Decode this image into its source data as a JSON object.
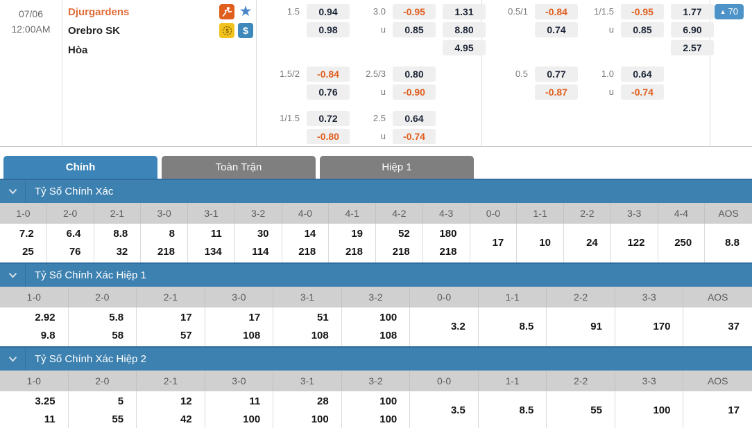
{
  "colors": {
    "accent_blue": "#3d81b0",
    "active_tab_blue": "#3d85b8",
    "inactive_tab_gray": "#7f7f7f",
    "negative_odds_orange": "#e05e1e",
    "home_team_orange": "#e06d38",
    "badge_blue": "#4e93c8",
    "odds_box_gray": "#efefef",
    "table_header_gray": "#d0d0d0"
  },
  "match": {
    "date": "07/06",
    "time": "12:00AM",
    "home": "Djurgardens",
    "away": "Orebro SK",
    "draw_label": "Hòa",
    "badge_arrow": "▲",
    "badge_count": "70"
  },
  "icons": {
    "player_icon": "running-player on orange square",
    "star_icon": "★",
    "coin_icon": "coin with $ on yellow square",
    "dollar_icon": "$",
    "chevron_icon": "chevron-down"
  },
  "odds_panel": {
    "groups": [
      {
        "sets": [
          {
            "handicap": {
              "label": "1.5",
              "values": [
                "0.94",
                "0.98"
              ]
            },
            "total": {
              "labels": [
                "3.0",
                "u"
              ],
              "values": [
                "-0.95",
                "0.85"
              ]
            },
            "x12": [
              "1.31",
              "8.80",
              "4.95"
            ]
          },
          {
            "handicap": {
              "label": "1.5/2",
              "values": [
                "-0.84",
                "0.76"
              ]
            },
            "total": {
              "labels": [
                "2.5/3",
                "u"
              ],
              "values": [
                "0.80",
                "-0.90"
              ]
            }
          },
          {
            "handicap": {
              "label": "1/1.5",
              "values": [
                "0.72",
                "-0.80"
              ]
            },
            "total": {
              "labels": [
                "2.5",
                "u"
              ],
              "values": [
                "0.64",
                "-0.74"
              ]
            }
          }
        ]
      },
      {
        "sets": [
          {
            "handicap": {
              "label": "0.5/1",
              "values": [
                "-0.84",
                "0.74"
              ]
            },
            "total": {
              "labels": [
                "1/1.5",
                "u"
              ],
              "values": [
                "-0.95",
                "0.85"
              ]
            },
            "x12": [
              "1.77",
              "6.90",
              "2.57"
            ]
          },
          {
            "handicap": {
              "label": "0.5",
              "values": [
                "0.77",
                "-0.87"
              ]
            },
            "total": {
              "labels": [
                "1.0",
                "u"
              ],
              "values": [
                "0.64",
                "-0.74"
              ]
            }
          }
        ]
      }
    ]
  },
  "tabs": [
    {
      "label": "Chính",
      "active": true
    },
    {
      "label": "Toàn Trận",
      "active": false
    },
    {
      "label": "Hiệp 1",
      "active": false
    }
  ],
  "sections": [
    {
      "title": "Tỷ Số Chính Xác",
      "columns": [
        {
          "score": "1-0",
          "odds": [
            "7.2",
            "25"
          ]
        },
        {
          "score": "2-0",
          "odds": [
            "6.4",
            "76"
          ]
        },
        {
          "score": "2-1",
          "odds": [
            "8.8",
            "32"
          ]
        },
        {
          "score": "3-0",
          "odds": [
            "8",
            "218"
          ]
        },
        {
          "score": "3-1",
          "odds": [
            "11",
            "134"
          ]
        },
        {
          "score": "3-2",
          "odds": [
            "30",
            "114"
          ]
        },
        {
          "score": "4-0",
          "odds": [
            "14",
            "218"
          ]
        },
        {
          "score": "4-1",
          "odds": [
            "19",
            "218"
          ]
        },
        {
          "score": "4-2",
          "odds": [
            "52",
            "218"
          ]
        },
        {
          "score": "4-3",
          "odds": [
            "180",
            "218"
          ]
        },
        {
          "score": "0-0",
          "odds": [
            "17"
          ]
        },
        {
          "score": "1-1",
          "odds": [
            "10"
          ]
        },
        {
          "score": "2-2",
          "odds": [
            "24"
          ]
        },
        {
          "score": "3-3",
          "odds": [
            "122"
          ]
        },
        {
          "score": "4-4",
          "odds": [
            "250"
          ]
        },
        {
          "score": "AOS",
          "odds": [
            "8.8"
          ]
        }
      ]
    },
    {
      "title": "Tỷ Số Chính Xác Hiệp 1",
      "columns": [
        {
          "score": "1-0",
          "odds": [
            "2.92",
            "9.8"
          ]
        },
        {
          "score": "2-0",
          "odds": [
            "5.8",
            "58"
          ]
        },
        {
          "score": "2-1",
          "odds": [
            "17",
            "57"
          ]
        },
        {
          "score": "3-0",
          "odds": [
            "17",
            "108"
          ]
        },
        {
          "score": "3-1",
          "odds": [
            "51",
            "108"
          ]
        },
        {
          "score": "3-2",
          "odds": [
            "100",
            "108"
          ]
        },
        {
          "score": "0-0",
          "odds": [
            "3.2"
          ]
        },
        {
          "score": "1-1",
          "odds": [
            "8.5"
          ]
        },
        {
          "score": "2-2",
          "odds": [
            "91"
          ]
        },
        {
          "score": "3-3",
          "odds": [
            "170"
          ]
        },
        {
          "score": "AOS",
          "odds": [
            "37"
          ]
        }
      ]
    },
    {
      "title": "Tỷ Số Chính Xác Hiệp 2",
      "columns": [
        {
          "score": "1-0",
          "odds": [
            "3.25",
            "11"
          ]
        },
        {
          "score": "2-0",
          "odds": [
            "5",
            "55"
          ]
        },
        {
          "score": "2-1",
          "odds": [
            "12",
            "42"
          ]
        },
        {
          "score": "3-0",
          "odds": [
            "11",
            "100"
          ]
        },
        {
          "score": "3-1",
          "odds": [
            "28",
            "100"
          ]
        },
        {
          "score": "3-2",
          "odds": [
            "100",
            "100"
          ]
        },
        {
          "score": "0-0",
          "odds": [
            "3.5"
          ]
        },
        {
          "score": "1-1",
          "odds": [
            "8.5"
          ]
        },
        {
          "score": "2-2",
          "odds": [
            "55"
          ]
        },
        {
          "score": "3-3",
          "odds": [
            "100"
          ]
        },
        {
          "score": "AOS",
          "odds": [
            "17"
          ]
        }
      ]
    }
  ]
}
